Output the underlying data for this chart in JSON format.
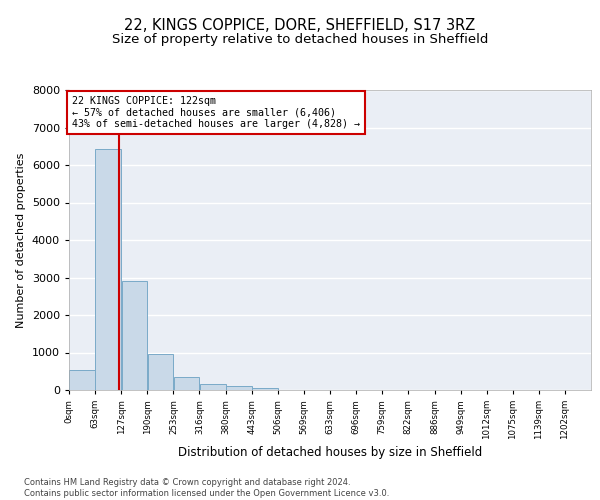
{
  "title1": "22, KINGS COPPICE, DORE, SHEFFIELD, S17 3RZ",
  "title2": "Size of property relative to detached houses in Sheffield",
  "xlabel": "Distribution of detached houses by size in Sheffield",
  "ylabel": "Number of detached properties",
  "bar_values": [
    540,
    6430,
    2920,
    960,
    340,
    160,
    100,
    65,
    0,
    0,
    0,
    0,
    0,
    0,
    0,
    0,
    0,
    0,
    0,
    0
  ],
  "bar_edges": [
    0,
    63,
    127,
    190,
    253,
    316,
    380,
    443,
    506,
    569,
    633,
    696,
    759,
    822,
    886,
    949,
    1012,
    1075,
    1139,
    1202,
    1265
  ],
  "bar_color": "#c9d9e8",
  "bar_edgecolor": "#7aaac8",
  "property_size": 122,
  "vline_color": "#cc0000",
  "annotation_text": "22 KINGS COPPICE: 122sqm\n← 57% of detached houses are smaller (6,406)\n43% of semi-detached houses are larger (4,828) →",
  "annotation_box_color": "#cc0000",
  "ylim": [
    0,
    8000
  ],
  "yticks": [
    0,
    1000,
    2000,
    3000,
    4000,
    5000,
    6000,
    7000,
    8000
  ],
  "bg_color": "#eaeef5",
  "grid_color": "#ffffff",
  "footer": "Contains HM Land Registry data © Crown copyright and database right 2024.\nContains public sector information licensed under the Open Government Licence v3.0.",
  "title1_fontsize": 10.5,
  "title2_fontsize": 9.5
}
